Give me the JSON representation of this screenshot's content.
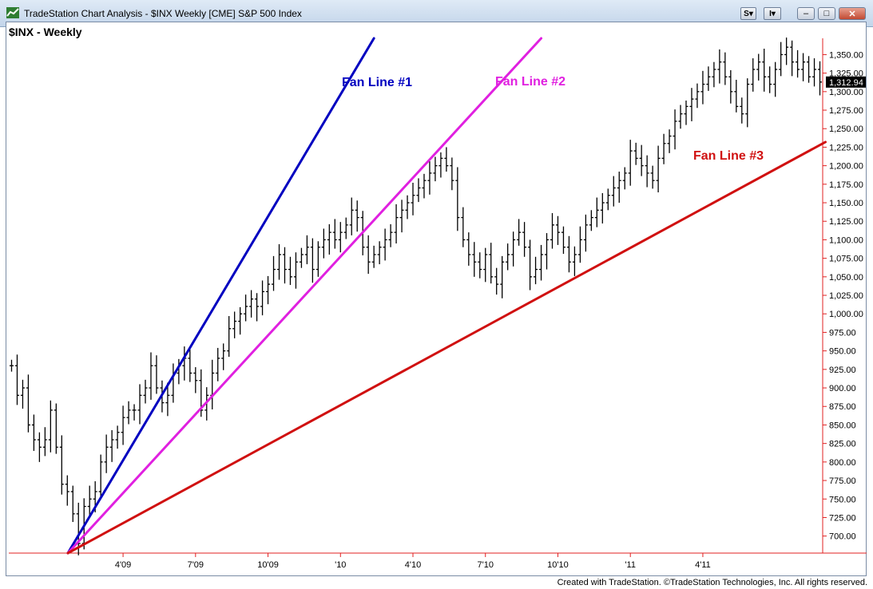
{
  "window": {
    "title": "TradeStation Chart Analysis - $INX Weekly [CME] S&P 500 Index",
    "btn_s": "S",
    "btn_i": "I",
    "minimize": "–",
    "maximize": "□",
    "close": "✕"
  },
  "footer": "Created with TradeStation. ©TradeStation Technologies, Inc. All rights reserved.",
  "chart_data": {
    "type": "ohlc",
    "title": "$INX - Weekly",
    "last_price": "1,312.94",
    "ylim": [
      677,
      1372
    ],
    "y_ticks": [
      700,
      725,
      750,
      775,
      800,
      825,
      850,
      875,
      900,
      925,
      950,
      975,
      1000,
      1025,
      1050,
      1075,
      1100,
      1125,
      1150,
      1175,
      1200,
      1225,
      1250,
      1275,
      1300,
      1325,
      1350
    ],
    "y_tick_labels": [
      "700.00",
      "725.00",
      "750.00",
      "775.00",
      "800.00",
      "825.00",
      "850.00",
      "875.00",
      "900.00",
      "925.00",
      "950.00",
      "975.00",
      "1,000.00",
      "1,025.00",
      "1,050.00",
      "1,075.00",
      "1,100.00",
      "1,125.00",
      "1,150.00",
      "1,175.00",
      "1,200.00",
      "1,225.00",
      "1,250.00",
      "1,275.00",
      "1,300.00",
      "1,325.00",
      "1,350.00"
    ],
    "x_ticks": [
      {
        "week": 20,
        "label": "4'09"
      },
      {
        "week": 33,
        "label": "7'09"
      },
      {
        "week": 46,
        "label": "10'09"
      },
      {
        "week": 59,
        "label": "'10"
      },
      {
        "week": 72,
        "label": "4'10"
      },
      {
        "week": 85,
        "label": "7'10"
      },
      {
        "week": 98,
        "label": "10'10"
      },
      {
        "week": 111,
        "label": "'11"
      },
      {
        "week": 124,
        "label": "4'11"
      }
    ],
    "close_series": [
      930,
      890,
      900,
      850,
      830,
      820,
      830,
      870,
      820,
      770,
      760,
      730,
      690,
      740,
      750,
      760,
      800,
      820,
      830,
      840,
      860,
      870,
      870,
      890,
      900,
      930,
      900,
      880,
      890,
      920,
      930,
      940,
      920,
      910,
      870,
      890,
      920,
      940,
      950,
      980,
      990,
      1000,
      1010,
      1020,
      1010,
      1030,
      1040,
      1060,
      1080,
      1060,
      1050,
      1070,
      1080,
      1090,
      1060,
      1090,
      1100,
      1110,
      1100,
      1110,
      1120,
      1140,
      1130,
      1090,
      1070,
      1080,
      1090,
      1100,
      1110,
      1130,
      1140,
      1150,
      1160,
      1170,
      1180,
      1190,
      1200,
      1210,
      1200,
      1180,
      1130,
      1100,
      1080,
      1070,
      1060,
      1080,
      1050,
      1040,
      1070,
      1080,
      1100,
      1110,
      1090,
      1050,
      1060,
      1080,
      1100,
      1120,
      1110,
      1090,
      1070,
      1080,
      1100,
      1120,
      1130,
      1140,
      1150,
      1160,
      1170,
      1180,
      1190,
      1220,
      1210,
      1200,
      1190,
      1180,
      1210,
      1230,
      1240,
      1260,
      1270,
      1280,
      1290,
      1300,
      1310,
      1320,
      1330,
      1340,
      1320,
      1300,
      1280,
      1270,
      1310,
      1330,
      1340,
      1320,
      1310,
      1330,
      1350,
      1360,
      1340,
      1330,
      1340,
      1320,
      1330,
      1312.94
    ],
    "fan_lines": [
      {
        "label": "Fan Line #1",
        "color": "#0000c0",
        "from": {
          "week": 12,
          "value": 677
        },
        "through": {
          "week": 65,
          "value": 1372
        }
      },
      {
        "label": "Fan Line #2",
        "color": "#e020e0",
        "from": {
          "week": 12,
          "value": 677
        },
        "through": {
          "week": 95,
          "value": 1372
        }
      },
      {
        "label": "Fan Line #3",
        "color": "#d01010",
        "from": {
          "week": 12,
          "value": 677
        },
        "through": {
          "week": 146,
          "value": 1232
        }
      }
    ],
    "colors": {
      "axis": "#e02020",
      "bars": "#000000",
      "price_tag_bg": "#000000",
      "price_tag_fg": "#ffffff"
    }
  }
}
